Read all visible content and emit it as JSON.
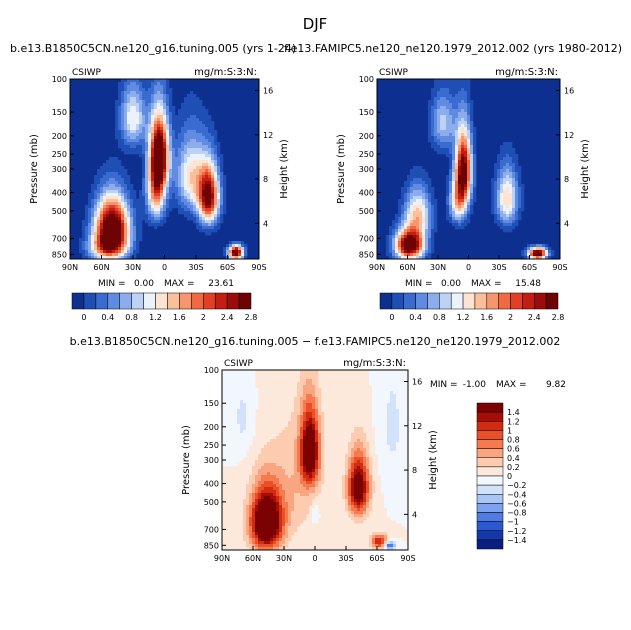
{
  "figure": {
    "title": "DJF",
    "header_left": "b.e13.B1850C5CN.ne120_g16.tuning.005 (yrs 1-24)",
    "header_right": "f.e13.FAMIPC5.ne120_ne120.1979_2012.002 (yrs 1980-2012)",
    "diff_title": "b.e13.B1850C5CN.ne120_g16.tuning.005 − f.e13.FAMIPC5.ne120_ne120.1979_2012.002"
  },
  "palette": {
    "abs": [
      "#0d2f8f",
      "#1f4fb5",
      "#3a6bd1",
      "#5f8be0",
      "#8caced",
      "#bcd3f5",
      "#eaf2fc",
      "#fde3d2",
      "#fbbf9a",
      "#f7966d",
      "#ef6a43",
      "#e04025",
      "#c41e12",
      "#9a0d08",
      "#6e0303"
    ],
    "diff": [
      "#0a1f80",
      "#1537a8",
      "#2d58cf",
      "#4f7be3",
      "#7da2ef",
      "#aac4f6",
      "#d2e2fb",
      "#f2f7fe",
      "#fde9dc",
      "#fccbb0",
      "#f9a57f",
      "#f57a50",
      "#ea5028",
      "#d02c12",
      "#a60d06",
      "#7a0202"
    ]
  },
  "chart_data": [
    {
      "type": "contour",
      "variable": "CSIWP",
      "units": "mg/m:S:3:N:",
      "x_ticks": [
        "90N",
        "60N",
        "30N",
        "0",
        "30S",
        "60S",
        "90S"
      ],
      "x_range": [
        90,
        -90
      ],
      "y_label": "Pressure (mb)",
      "y_ticks": [
        "100",
        "150",
        "200",
        "250",
        "300",
        "400",
        "500",
        "700",
        "850"
      ],
      "y_range_mb": [
        100,
        900
      ],
      "right_label": "Height (km)",
      "right_ticks": [
        "16",
        "12",
        "8",
        "4"
      ],
      "min_label": "MIN =",
      "min_value": "0.00",
      "max_label": "MAX =",
      "max_value": "23.61",
      "colorbar_labels": [
        "0",
        "0.4",
        "0.8",
        "1.2",
        "1.6",
        "2",
        "2.4",
        "2.8"
      ],
      "blobs": [
        {
          "lat": 50,
          "p": 620,
          "slat": 16,
          "sp": 210,
          "amp": 3.6
        },
        {
          "lat": 55,
          "p": 790,
          "slat": 18,
          "sp": 120,
          "amp": 1.4
        },
        {
          "lat": 5,
          "p": 250,
          "slat": 9,
          "sp": 110,
          "amp": 3.3
        },
        {
          "lat": 8,
          "p": 400,
          "slat": 9,
          "sp": 140,
          "amp": 2.0
        },
        {
          "lat": -42,
          "p": 420,
          "slat": 10,
          "sp": 150,
          "amp": 2.9
        },
        {
          "lat": -25,
          "p": 330,
          "slat": 14,
          "sp": 150,
          "amp": 1.5
        },
        {
          "lat": -68,
          "p": 830,
          "slat": 7,
          "sp": 70,
          "amp": 3.3
        },
        {
          "lat": 30,
          "p": 160,
          "slat": 12,
          "sp": 60,
          "amp": 1.4
        }
      ]
    },
    {
      "type": "contour",
      "variable": "CSIWP",
      "units": "mg/m:S:3:N:",
      "x_ticks": [
        "90N",
        "60N",
        "30N",
        "0",
        "30S",
        "60S",
        "90S"
      ],
      "x_range": [
        90,
        -90
      ],
      "y_label": "Pressure (mb)",
      "y_ticks": [
        "100",
        "150",
        "200",
        "250",
        "300",
        "400",
        "500",
        "700",
        "850"
      ],
      "y_range_mb": [
        100,
        900
      ],
      "right_label": "Height (km)",
      "right_ticks": [
        "16",
        "12",
        "8",
        "4"
      ],
      "min_label": "MIN =",
      "min_value": "0.00",
      "max_label": "MAX =",
      "max_value": "15.48",
      "colorbar_labels": [
        "0",
        "0.4",
        "0.8",
        "1.2",
        "1.6",
        "2",
        "2.4",
        "2.8"
      ],
      "blobs": [
        {
          "lat": 58,
          "p": 760,
          "slat": 14,
          "sp": 140,
          "amp": 3.4
        },
        {
          "lat": 50,
          "p": 520,
          "slat": 13,
          "sp": 160,
          "amp": 1.6
        },
        {
          "lat": 5,
          "p": 300,
          "slat": 8,
          "sp": 130,
          "amp": 3.0
        },
        {
          "lat": 10,
          "p": 450,
          "slat": 9,
          "sp": 120,
          "amp": 1.6
        },
        {
          "lat": -38,
          "p": 430,
          "slat": 11,
          "sp": 150,
          "amp": 1.6
        },
        {
          "lat": -68,
          "p": 840,
          "slat": 9,
          "sp": 60,
          "amp": 3.4
        },
        {
          "lat": 25,
          "p": 170,
          "slat": 12,
          "sp": 60,
          "amp": 1.1
        }
      ]
    },
    {
      "type": "contour",
      "variable": "CSIWP",
      "units": "mg/m:S:3:N:",
      "x_ticks": [
        "90N",
        "60N",
        "30N",
        "0",
        "30S",
        "60S",
        "90S"
      ],
      "x_range": [
        90,
        -90
      ],
      "y_label": "Pressure (mb)",
      "y_ticks": [
        "100",
        "150",
        "200",
        "250",
        "300",
        "400",
        "500",
        "700",
        "850"
      ],
      "y_range_mb": [
        100,
        900
      ],
      "right_label": "Height (km)",
      "right_ticks": [
        "16",
        "12",
        "8",
        "4"
      ],
      "min_label": "MIN =",
      "min_value": "-1.00",
      "max_label": "MAX =",
      "max_value": "9.82",
      "colorbar_labels": [
        "1.4",
        "1.2",
        "1",
        "0.8",
        "0.6",
        "0.4",
        "0.2",
        "0",
        "−0.2",
        "−0.4",
        "−0.6",
        "−0.8",
        "−1",
        "−1.2",
        "−1.4"
      ],
      "blobs": [
        {
          "lat": 47,
          "p": 640,
          "slat": 15,
          "sp": 230,
          "amp": 2.3
        },
        {
          "lat": 5,
          "p": 270,
          "slat": 9,
          "sp": 120,
          "amp": 1.9
        },
        {
          "lat": -42,
          "p": 420,
          "slat": 10,
          "sp": 150,
          "amp": 1.8
        },
        {
          "lat": -62,
          "p": 810,
          "slat": 8,
          "sp": 70,
          "amp": 1.2
        },
        {
          "lat": -72,
          "p": 850,
          "slat": 5,
          "sp": 40,
          "amp": -1.2
        },
        {
          "lat": 70,
          "p": 180,
          "slat": 10,
          "sp": 80,
          "amp": -0.25
        },
        {
          "lat": -75,
          "p": 200,
          "slat": 12,
          "sp": 150,
          "amp": -0.25
        },
        {
          "lat": 0,
          "p": 580,
          "slat": 4,
          "sp": 70,
          "amp": -0.35
        },
        {
          "lat": 20,
          "p": 420,
          "slat": 25,
          "sp": 300,
          "amp": 0.35
        }
      ]
    }
  ]
}
